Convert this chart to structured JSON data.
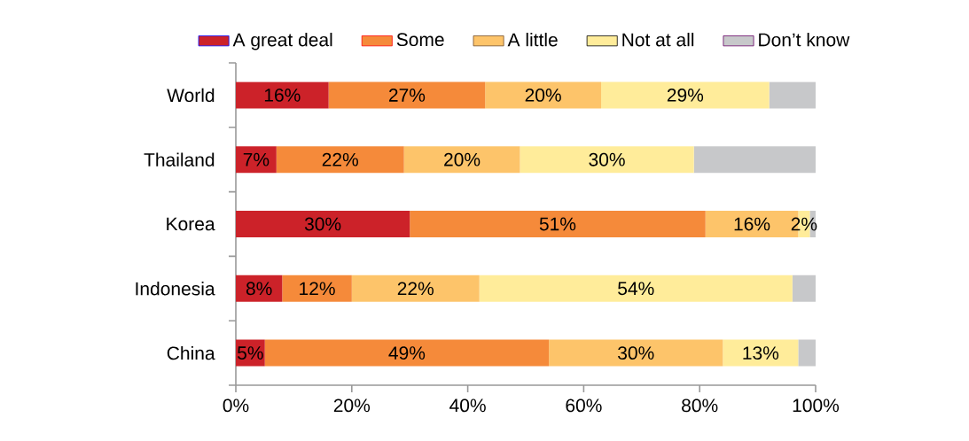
{
  "chart_data": {
    "type": "bar",
    "orientation": "horizontal",
    "stacked": true,
    "categories": [
      "World",
      "Thailand",
      "Korea",
      "Indonesia",
      "China"
    ],
    "series": [
      {
        "name": "A great deal",
        "color": "#cc2229",
        "values": [
          16,
          7,
          30,
          8,
          5
        ],
        "value_labels": [
          "16%",
          "7%",
          "30%",
          "8%",
          "5%"
        ]
      },
      {
        "name": "Some",
        "color": "#f58a3a",
        "values": [
          27,
          22,
          51,
          12,
          49
        ],
        "value_labels": [
          "27%",
          "22%",
          "51%",
          "12%",
          "49%"
        ]
      },
      {
        "name": "A little",
        "color": "#fdc46a",
        "values": [
          20,
          20,
          16,
          22,
          30
        ],
        "value_labels": [
          "20%",
          "20%",
          "16%",
          "22%",
          "30%"
        ]
      },
      {
        "name": "Not at all",
        "color": "#ffec9a",
        "values": [
          29,
          30,
          2,
          54,
          13
        ],
        "value_labels": [
          "29%",
          "30%",
          "2%",
          "54%",
          "13%"
        ]
      },
      {
        "name": "Don’t know",
        "color": "#c7c8ca",
        "values": [
          8,
          21,
          1,
          4,
          3
        ],
        "value_labels": [
          null,
          null,
          null,
          null,
          null
        ]
      }
    ],
    "xlim": [
      0,
      100
    ],
    "xticks": [
      {
        "value": 0,
        "label": "0%"
      },
      {
        "value": 20,
        "label": "20%"
      },
      {
        "value": 40,
        "label": "40%"
      },
      {
        "value": 60,
        "label": "60%"
      },
      {
        "value": 80,
        "label": "80%"
      },
      {
        "value": 100,
        "label": "100%"
      }
    ],
    "legend": "top",
    "grid": false
  }
}
